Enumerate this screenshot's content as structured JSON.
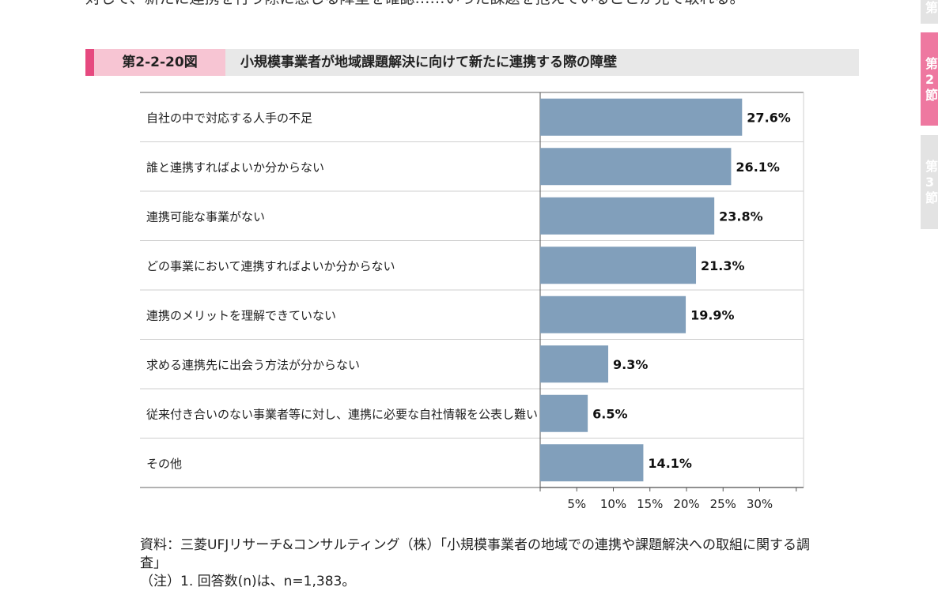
{
  "page": {
    "top_text": "対して、新たに連携を行う際に感じる障壁を確認……いった課題を抱えていることが見て取れる。",
    "figure_number": "第2-2-20図",
    "figure_title": "小規模事業者が地域課題解決に向けて新たに連携する際の障壁",
    "side_tabs": [
      {
        "lines": [
          "第"
        ]
      },
      {
        "lines": [
          "第",
          "2",
          "節"
        ]
      },
      {
        "lines": [
          "第",
          "3",
          "節"
        ]
      }
    ],
    "source_note": "資料：三菱UFJリサーチ&コンサルティング（株）「小規模事業者の地域での連携や課題解決への取組に関する調査」",
    "note_1": "（注）1. 回答数(n)は、n=1,383。"
  },
  "chart_data": {
    "type": "bar",
    "orientation": "horizontal",
    "categories": [
      "自社の中で対応する人手の不足",
      "誰と連携すればよいか分からない",
      "連携可能な事業がない",
      "どの事業において連携すればよいか分からない",
      "連携のメリットを理解できていない",
      "求める連携先に出会う方法が分からない",
      "従来付き合いのない事業者等に対し、連携に必要な自社情報を公表し難い",
      "その他"
    ],
    "values": [
      27.6,
      26.1,
      23.8,
      21.3,
      19.9,
      9.3,
      6.5,
      14.1
    ],
    "value_labels": [
      "27.6%",
      "26.1%",
      "23.8%",
      "21.3%",
      "19.9%",
      "9.3%",
      "6.5%",
      "14.1%"
    ],
    "xlim": [
      0,
      36
    ],
    "x_ticks": [
      5,
      10,
      15,
      20,
      25,
      30
    ],
    "x_tick_labels": [
      "5%",
      "10%",
      "15%",
      "20%",
      "25%",
      "30%"
    ],
    "bar_color": "#819fbb",
    "grid": false
  }
}
